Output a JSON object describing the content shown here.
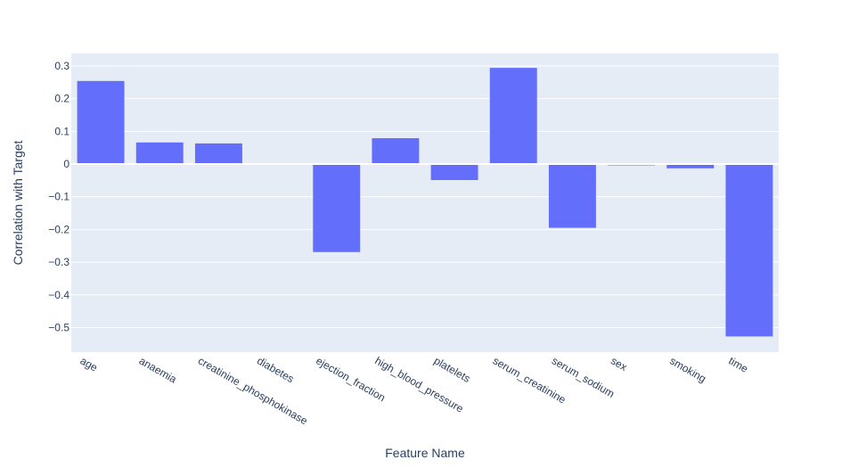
{
  "chart_data": {
    "type": "bar",
    "title": "",
    "xlabel": "Feature Name",
    "ylabel": "Correlation with Target",
    "categories": [
      "age",
      "anaemia",
      "creatinine_phosphokinase",
      "diabetes",
      "ejection_fraction",
      "high_blood_pressure",
      "platelets",
      "serum_creatinine",
      "serum_sodium",
      "sex",
      "smoking",
      "time"
    ],
    "values": [
      0.254,
      0.066,
      0.063,
      -0.002,
      -0.269,
      0.079,
      -0.049,
      0.294,
      -0.195,
      -0.004,
      -0.013,
      -0.527
    ],
    "ylim": [
      -0.575,
      0.338
    ],
    "yticks": [
      0.3,
      0.2,
      0.1,
      0,
      -0.1,
      -0.2,
      -0.3,
      -0.4,
      -0.5
    ],
    "ytick_labels": [
      "0.3",
      "0.2",
      "0.1",
      "0",
      "−0.1",
      "−0.2",
      "−0.3",
      "−0.4",
      "−0.5"
    ],
    "grid": true,
    "colors": {
      "bar": "#636efa",
      "plot_bg": "#e5ecf6",
      "grid": "#ffffff",
      "text": "#2a3f5f"
    }
  }
}
